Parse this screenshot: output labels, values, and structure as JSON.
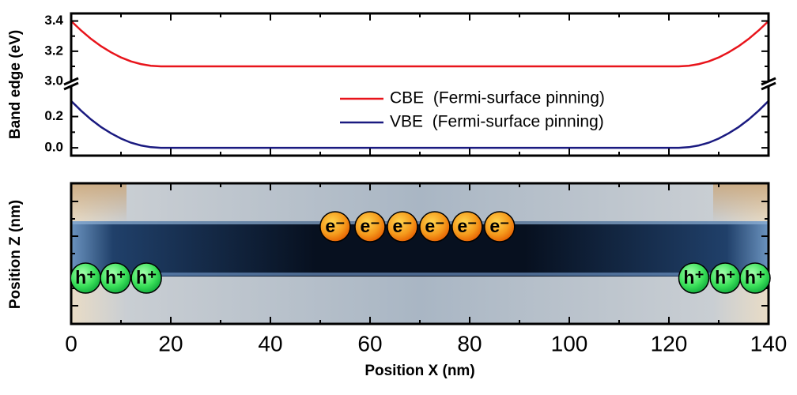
{
  "chart_data": [
    {
      "type": "line",
      "ylabel": "Band edge (eV)",
      "x": [
        0,
        2,
        4,
        6,
        8,
        10,
        12,
        14,
        16,
        18,
        122,
        124,
        126,
        128,
        130,
        132,
        134,
        136,
        138,
        140
      ],
      "xlim": [
        0,
        140
      ],
      "ylim": [
        -0.05,
        0.41
      ],
      "yticks": [
        {
          "value": 0,
          "label": "0.0"
        },
        0.2
      ],
      "yminorticks": [
        0.1
      ],
      "y2lim": [
        2.985,
        3.45
      ],
      "y2ticks": [
        {
          "value": 3,
          "label": "3.0"
        },
        3.2,
        3.4
      ],
      "y2minorticks": [
        3.1,
        3.3
      ],
      "axis_break": true,
      "series": [
        {
          "name": "CBE  (Fermi-surface pinning)",
          "color": "#e8141b",
          "axis": "y2",
          "values": [
            3.4,
            3.337,
            3.281,
            3.233,
            3.193,
            3.159,
            3.133,
            3.115,
            3.104,
            3.1,
            3.1,
            3.104,
            3.115,
            3.133,
            3.159,
            3.193,
            3.233,
            3.281,
            3.337,
            3.4
          ]
        },
        {
          "name": "VBE  (Fermi-surface pinning)",
          "color": "#1a1a80",
          "values": [
            0.3,
            0.237,
            0.181,
            0.133,
            0.093,
            0.059,
            0.033,
            0.015,
            0.004,
            0,
            0,
            0.004,
            0.015,
            0.033,
            0.059,
            0.093,
            0.133,
            0.181,
            0.237,
            0.3
          ]
        }
      ]
    },
    {
      "type": "particles",
      "xlabel": "Position X (nm)",
      "ylabel": "Position Z (nm)",
      "xlim": [
        0,
        140
      ],
      "xticks": [
        0,
        20,
        40,
        60,
        80,
        100,
        120,
        140
      ],
      "xminorticks": [
        10,
        30,
        50,
        70,
        90,
        110,
        130
      ],
      "electrons": {
        "symbol": "e⁻",
        "x": [
          53,
          60,
          66.5,
          73,
          79.5,
          86
        ]
      },
      "holes": {
        "symbol": "h⁺",
        "x": [
          2.9,
          8.9,
          15.1,
          125,
          131.3,
          137.3
        ]
      }
    }
  ]
}
